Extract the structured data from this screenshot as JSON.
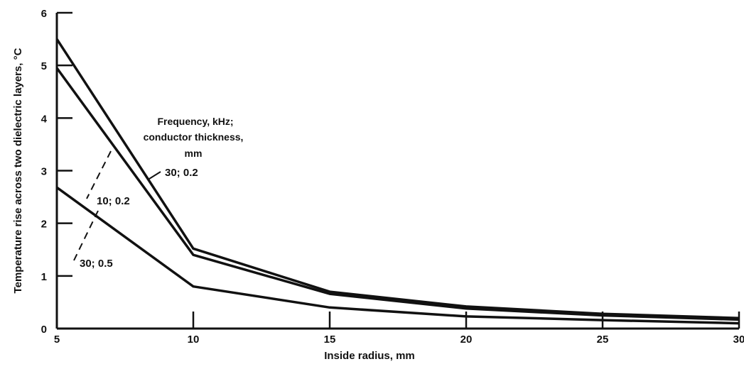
{
  "chart_data": {
    "type": "line",
    "title": "",
    "xlabel": "Inside radius, mm",
    "ylabel": "Temperature rise across two dielectric layers, °C",
    "xlim": [
      5,
      30
    ],
    "ylim": [
      0,
      6
    ],
    "x_ticks": [
      5,
      10,
      15,
      20,
      25,
      30
    ],
    "y_ticks": [
      0,
      1,
      2,
      3,
      4,
      5,
      6
    ],
    "grid": false,
    "legend_title": [
      "Frequency, kHz;",
      "conductor thickness,",
      "mm"
    ],
    "series": [
      {
        "name": "30; 0.2",
        "x": [
          5,
          10,
          15,
          20,
          25,
          30
        ],
        "y": [
          5.5,
          1.52,
          0.7,
          0.42,
          0.28,
          0.2
        ]
      },
      {
        "name": "10; 0.2",
        "x": [
          5,
          10,
          15,
          20,
          25,
          30
        ],
        "y": [
          4.95,
          1.4,
          0.66,
          0.38,
          0.25,
          0.17
        ]
      },
      {
        "name": "30; 0.5",
        "x": [
          5,
          10,
          15,
          20,
          25,
          30
        ],
        "y": [
          2.68,
          0.8,
          0.4,
          0.23,
          0.16,
          0.1
        ]
      }
    ]
  }
}
